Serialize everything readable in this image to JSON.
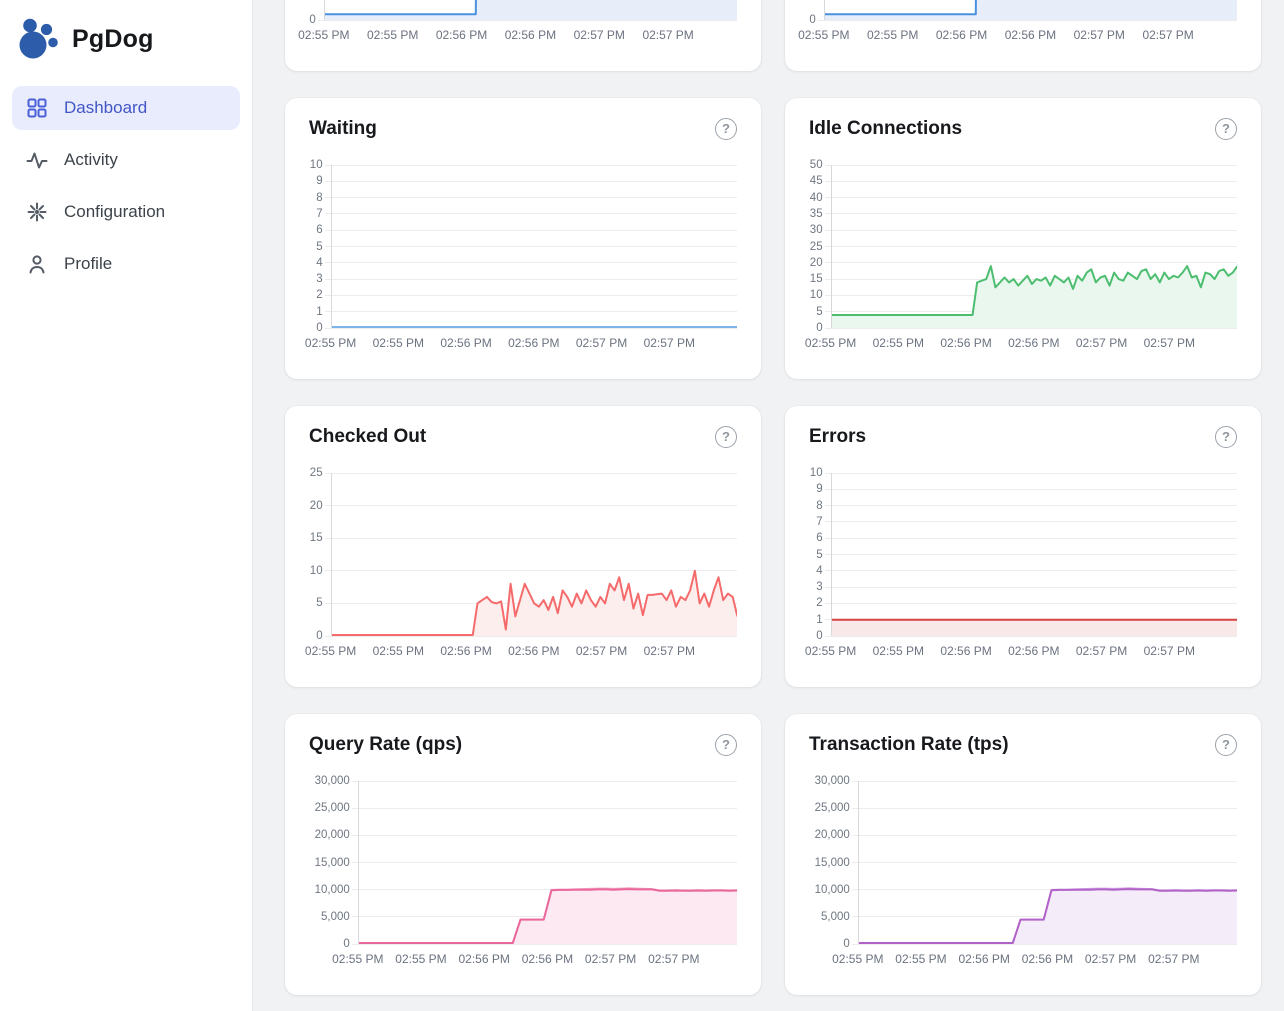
{
  "app": {
    "name": "PgDog"
  },
  "sidebar": {
    "items": [
      {
        "label": "Dashboard",
        "icon": "grid-icon",
        "active": true
      },
      {
        "label": "Activity",
        "icon": "activity-icon",
        "active": false
      },
      {
        "label": "Configuration",
        "icon": "spark-icon",
        "active": false
      },
      {
        "label": "Profile",
        "icon": "user-icon",
        "active": false
      }
    ]
  },
  "icons": {
    "help_symbol": "?",
    "logo": "paw-icon"
  },
  "colors": {
    "logo_blue": "#2d5cab",
    "active_item_bg": "#e8ecfc",
    "active_item_text": "#4356c6",
    "main_bg": "#f1f2f4",
    "card_bg": "#ffffff"
  },
  "chart_data": [
    {
      "type": "area",
      "title": "",
      "xticks": [
        "02:55 PM",
        "02:55 PM",
        "02:56 PM",
        "02:56 PM",
        "02:57 PM",
        "02:57 PM"
      ],
      "ylim": [
        0,
        10
      ],
      "yticks": [
        "0"
      ],
      "grid": true,
      "series": [
        {
          "color": "#4b90dc",
          "fill": "#e7eefa",
          "values": [
            0.35,
            0.35,
            0.35,
            0.35,
            0.35,
            0.35,
            0.35,
            0.35,
            0.35,
            0.35,
            0.35,
            0.35,
            0.35,
            0.35,
            0.35,
            0.35,
            0.35,
            0.35,
            0.35,
            60,
            60,
            60,
            60,
            60,
            60,
            60,
            60,
            60,
            60,
            60,
            60,
            60,
            60,
            60,
            60,
            60,
            60,
            60,
            60,
            60,
            60,
            60,
            60,
            60,
            60,
            60,
            60,
            60,
            60,
            60
          ]
        }
      ]
    },
    {
      "type": "area",
      "title": "",
      "xticks": [
        "02:55 PM",
        "02:55 PM",
        "02:56 PM",
        "02:56 PM",
        "02:57 PM",
        "02:57 PM"
      ],
      "ylim": [
        0,
        10
      ],
      "yticks": [
        "0"
      ],
      "grid": true,
      "series": [
        {
          "color": "#4b90dc",
          "fill": "#e7eefa",
          "values": [
            0.35,
            0.35,
            0.35,
            0.35,
            0.35,
            0.35,
            0.35,
            0.35,
            0.35,
            0.35,
            0.35,
            0.35,
            0.35,
            0.35,
            0.35,
            0.35,
            0.35,
            0.35,
            0.35,
            60,
            60,
            60,
            60,
            60,
            60,
            60,
            60,
            60,
            60,
            60,
            60,
            60,
            60,
            60,
            60,
            60,
            60,
            60,
            60,
            60,
            60,
            60,
            60,
            60,
            60,
            60,
            60,
            60,
            60,
            60
          ]
        }
      ]
    },
    {
      "type": "area",
      "title": "Waiting",
      "xticks": [
        "02:55 PM",
        "02:55 PM",
        "02:56 PM",
        "02:56 PM",
        "02:57 PM",
        "02:57 PM"
      ],
      "ylim": [
        0,
        10
      ],
      "yticks": [
        "10",
        "9",
        "8",
        "7",
        "6",
        "5",
        "4",
        "3",
        "2",
        "1",
        "0"
      ],
      "grid": true,
      "series": [
        {
          "color": "#7ab4e8",
          "fill": "#e7f0fb",
          "values": [
            0,
            0
          ]
        }
      ]
    },
    {
      "type": "area",
      "title": "Idle Connections",
      "xticks": [
        "02:55 PM",
        "02:55 PM",
        "02:56 PM",
        "02:56 PM",
        "02:57 PM",
        "02:57 PM"
      ],
      "ylim": [
        0,
        50
      ],
      "yticks": [
        "50",
        "45",
        "40",
        "35",
        "30",
        "25",
        "20",
        "15",
        "10",
        "5",
        "0"
      ],
      "grid": true,
      "series": [
        {
          "color": "#4dbe70",
          "fill": "#e9f7ee",
          "values": [
            4,
            4,
            4,
            4,
            4,
            4,
            4,
            4,
            4,
            4,
            4,
            4,
            4,
            4,
            4,
            4,
            4,
            4,
            4,
            4,
            4,
            4,
            4,
            4,
            4,
            4,
            4,
            4,
            4,
            4,
            4,
            4,
            14,
            14.5,
            15,
            19,
            12.5,
            14,
            15.5,
            14,
            15,
            13,
            14.5,
            16,
            13.5,
            15,
            14.5,
            15.5,
            13,
            16,
            15,
            14,
            15.5,
            12,
            16,
            14.5,
            17,
            18,
            14,
            15.5,
            16,
            13,
            17,
            15,
            14.5,
            17,
            16,
            15,
            17.5,
            18,
            15,
            16.5,
            14,
            17,
            15,
            16,
            15.5,
            17,
            19,
            15.5,
            16,
            12.5,
            17,
            16.5,
            15,
            17.5,
            18,
            16,
            17,
            19
          ]
        }
      ]
    },
    {
      "type": "area",
      "title": "Checked Out",
      "xticks": [
        "02:55 PM",
        "02:55 PM",
        "02:56 PM",
        "02:56 PM",
        "02:57 PM",
        "02:57 PM"
      ],
      "ylim": [
        0,
        25
      ],
      "yticks": [
        "25",
        "20",
        "15",
        "10",
        "5",
        "0"
      ],
      "grid": true,
      "series": [
        {
          "color": "#f56b6c",
          "fill": "#fdeeee",
          "values": [
            0,
            0,
            0,
            0,
            0,
            0,
            0,
            0,
            0,
            0,
            0,
            0,
            0,
            0,
            0,
            0,
            0,
            0,
            0,
            0,
            0,
            0,
            0,
            0,
            0,
            0,
            0,
            0,
            0,
            0,
            0,
            5,
            5.5,
            6,
            5.2,
            5,
            5.3,
            1,
            8,
            3,
            5.5,
            8,
            6.5,
            5,
            4.5,
            5.5,
            4,
            6,
            3.5,
            7,
            6,
            4.5,
            6.5,
            5,
            7,
            5.5,
            4.5,
            6,
            5,
            8,
            7,
            9,
            5.5,
            8,
            4.2,
            6.5,
            3.2,
            6.3,
            6.3,
            6.4,
            6.5,
            5.5,
            7,
            4.5,
            6,
            5.5,
            7,
            10,
            5,
            6.5,
            4.5,
            7,
            9,
            5.5,
            6.5,
            6,
            3
          ]
        }
      ]
    },
    {
      "type": "area",
      "title": "Errors",
      "xticks": [
        "02:55 PM",
        "02:55 PM",
        "02:56 PM",
        "02:56 PM",
        "02:57 PM",
        "02:57 PM"
      ],
      "ylim": [
        0,
        10
      ],
      "yticks": [
        "10",
        "9",
        "8",
        "7",
        "6",
        "5",
        "4",
        "3",
        "2",
        "1",
        "0"
      ],
      "grid": true,
      "series": [
        {
          "color": "#d64242",
          "fill": "#f9e8e8",
          "values": [
            1,
            1
          ]
        }
      ]
    },
    {
      "type": "area",
      "title": "Query Rate (qps)",
      "xticks": [
        "02:55 PM",
        "02:55 PM",
        "02:56 PM",
        "02:56 PM",
        "02:57 PM",
        "02:57 PM"
      ],
      "ylim": [
        0,
        30000
      ],
      "yticks": [
        "30,000",
        "25,000",
        "20,000",
        "15,000",
        "10,000",
        "5,000",
        "0"
      ],
      "grid": true,
      "series": [
        {
          "color": "#f3a1c0",
          "fill": "none",
          "values": [
            0,
            0,
            0,
            0,
            0,
            0,
            0,
            0,
            0,
            0,
            0,
            0,
            0,
            0,
            0,
            0,
            0,
            0,
            0,
            0,
            0,
            4500,
            4500,
            4500,
            4500,
            9950,
            10000,
            10000,
            10050,
            10100,
            10150,
            10200,
            10200,
            10150,
            10200,
            10250,
            10200,
            10150,
            10100,
            9850,
            9850,
            9900,
            9850,
            9850,
            9900,
            9850,
            9900,
            9900,
            9850,
            9900
          ]
        },
        {
          "color": "#e9679b",
          "fill": "#fce9f2",
          "values": [
            0,
            0,
            0,
            0,
            0,
            0,
            0,
            0,
            0,
            0,
            0,
            0,
            0,
            0,
            0,
            0,
            0,
            0,
            0,
            0,
            0,
            4500,
            4500,
            4500,
            4500,
            9900,
            9950,
            9950,
            10000,
            10000,
            10000,
            10050,
            10050,
            10000,
            10050,
            10100,
            10050,
            10050,
            10050,
            9800,
            9800,
            9850,
            9800,
            9800,
            9850,
            9800,
            9850,
            9850,
            9800,
            9850
          ]
        }
      ]
    },
    {
      "type": "area",
      "title": "Transaction Rate (tps)",
      "xticks": [
        "02:55 PM",
        "02:55 PM",
        "02:56 PM",
        "02:56 PM",
        "02:57 PM",
        "02:57 PM"
      ],
      "ylim": [
        0,
        30000
      ],
      "yticks": [
        "30,000",
        "25,000",
        "20,000",
        "15,000",
        "10,000",
        "5,000",
        "0"
      ],
      "grid": true,
      "series": [
        {
          "color": "#d4a3e3",
          "fill": "none",
          "values": [
            0,
            0,
            0,
            0,
            0,
            0,
            0,
            0,
            0,
            0,
            0,
            0,
            0,
            0,
            0,
            0,
            0,
            0,
            0,
            0,
            0,
            4500,
            4500,
            4500,
            4500,
            9950,
            10000,
            10000,
            10050,
            10100,
            10150,
            10200,
            10200,
            10150,
            10200,
            10250,
            10200,
            10150,
            10100,
            9850,
            9850,
            9900,
            9850,
            9850,
            9900,
            9850,
            9900,
            9900,
            9850,
            9900
          ]
        },
        {
          "color": "#b162c7",
          "fill": "#f5ecf9",
          "values": [
            0,
            0,
            0,
            0,
            0,
            0,
            0,
            0,
            0,
            0,
            0,
            0,
            0,
            0,
            0,
            0,
            0,
            0,
            0,
            0,
            0,
            4500,
            4500,
            4500,
            4500,
            9900,
            9950,
            9950,
            10000,
            10000,
            10000,
            10050,
            10050,
            10000,
            10050,
            10100,
            10050,
            10050,
            10050,
            9800,
            9800,
            9850,
            9800,
            9800,
            9850,
            9800,
            9850,
            9850,
            9800,
            9850
          ]
        }
      ]
    }
  ]
}
